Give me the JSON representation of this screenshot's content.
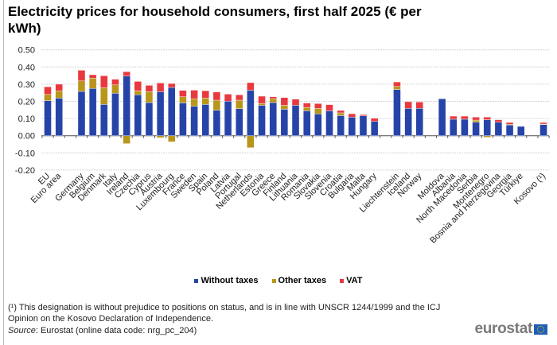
{
  "title": "Electricity prices for household consumers, first half 2025 (€ per kWh)",
  "legend": {
    "placement": "bottom",
    "items": [
      {
        "label": "Without taxes",
        "color": "#2644a8"
      },
      {
        "label": "Other taxes",
        "color": "#b8961c"
      },
      {
        "label": "VAT",
        "color": "#e8393f"
      }
    ]
  },
  "footnote": "(¹) This designation is without prejudice to positions on status, and is in line with UNSCR 1244/1999 and the ICJ Opinion on the Kosovo Declaration of Independence.",
  "source_label": "Source",
  "source_text": ": Eurostat (online data code: nrg_pc_204)",
  "logo_text": "eurostat",
  "chart_data": {
    "type": "bar",
    "stacked": true,
    "title": "Electricity prices for household consumers, first half 2025 (€ per kWh)",
    "xlabel": "",
    "ylabel": "",
    "ylim": [
      -0.2,
      0.5
    ],
    "yticks": [
      "0.50",
      "0.40",
      "0.30",
      "0.20",
      "0.10",
      "0.00",
      "-0.10",
      "-0.20"
    ],
    "grid": true,
    "categories": [
      "EU",
      "Euro area",
      "Germany",
      "Belgium",
      "Denmark",
      "Italy",
      "Ireland",
      "Czechia",
      "Cyprus",
      "Austria",
      "Luxembourg",
      "France",
      "Sweden",
      "Spain",
      "Poland",
      "Latvia",
      "Portugal",
      "Netherlands",
      "Estonia",
      "Greece",
      "Finland",
      "Lithuania",
      "Romania",
      "Slovakia",
      "Slovenia",
      "Croatia",
      "Bulgaria",
      "Malta",
      "Hungary",
      "Liechtenstein",
      "Iceland",
      "Norway",
      "Moldova",
      "Albania",
      "North Macedonia",
      "Serbia",
      "Montenegro",
      "Bosnia and Herzegovina",
      "Georgia",
      "Türkiye",
      "Kosovo (¹)"
    ],
    "series": [
      {
        "name": "Without taxes",
        "color": "#2644a8",
        "values": [
          0.204,
          0.219,
          0.258,
          0.275,
          0.182,
          0.247,
          0.347,
          0.238,
          0.193,
          0.256,
          0.281,
          0.191,
          0.171,
          0.182,
          0.148,
          0.201,
          0.157,
          0.265,
          0.177,
          0.193,
          0.154,
          0.177,
          0.145,
          0.127,
          0.145,
          0.117,
          0.108,
          0.116,
          0.083,
          0.269,
          0.159,
          0.159,
          0.215,
          0.096,
          0.096,
          0.079,
          0.093,
          0.079,
          0.062,
          0.054,
          0.065
        ]
      },
      {
        "name": "Other taxes",
        "color": "#b8961c",
        "values": [
          0.036,
          0.042,
          0.061,
          0.06,
          0.097,
          0.049,
          -0.046,
          0.024,
          0.063,
          -0.012,
          -0.036,
          0.036,
          0.044,
          0.037,
          0.059,
          0.0,
          0.05,
          -0.07,
          0.011,
          0.023,
          0.023,
          0.0,
          0.02,
          0.032,
          0.0,
          0.016,
          0.0,
          0.0,
          0.0,
          0.018,
          0.0,
          0.0,
          0.0,
          0.0,
          0.0,
          0.012,
          -0.009,
          0.0,
          0.005,
          0.0,
          0.003
        ]
      },
      {
        "name": "VAT",
        "color": "#e8393f",
        "values": [
          0.045,
          0.039,
          0.062,
          0.02,
          0.07,
          0.033,
          0.026,
          0.054,
          0.037,
          0.051,
          0.023,
          0.037,
          0.05,
          0.043,
          0.048,
          0.041,
          0.031,
          0.044,
          0.042,
          0.011,
          0.045,
          0.036,
          0.025,
          0.028,
          0.036,
          0.014,
          0.02,
          0.007,
          0.019,
          0.026,
          0.039,
          0.037,
          0.0,
          0.018,
          0.018,
          0.017,
          0.015,
          0.014,
          0.01,
          0.0,
          0.009
        ]
      }
    ]
  }
}
